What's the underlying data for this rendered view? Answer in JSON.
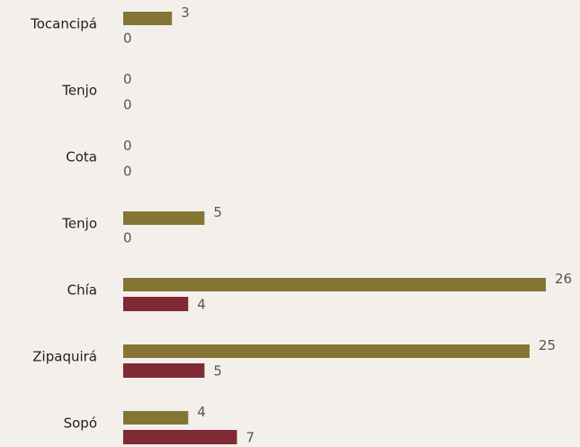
{
  "chart_data": {
    "type": "bar",
    "orientation": "horizontal",
    "categories": [
      "Tocancipá",
      "Tenjo",
      "Cota",
      "Tenjo",
      "Chía",
      "Zipaquirá",
      "Sopó"
    ],
    "series": [
      {
        "color": "#857535",
        "values": [
          3,
          0,
          0,
          5,
          26,
          25,
          4
        ]
      },
      {
        "color": "#7f2a35",
        "values": [
          0,
          0,
          0,
          0,
          4,
          5,
          7
        ]
      }
    ]
  }
}
